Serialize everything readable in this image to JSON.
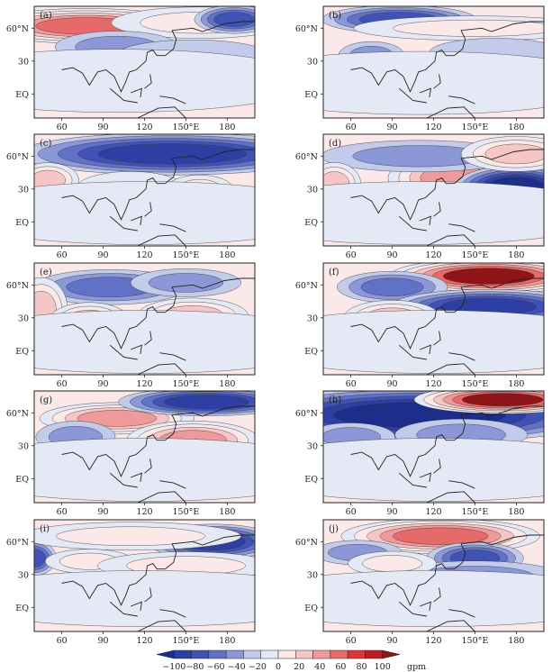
{
  "panels": [
    {
      "label": "(a)",
      "blobs": [
        {
          "cx": 78,
          "cy": 62,
          "rx": 48,
          "ry": 10,
          "a": 90
        },
        {
          "cx": 160,
          "cy": 65,
          "rx": 40,
          "ry": 9,
          "a": 40
        },
        {
          "cx": 185,
          "cy": 68,
          "rx": 18,
          "ry": 8,
          "a": -70
        },
        {
          "cx": 100,
          "cy": 43,
          "rx": 28,
          "ry": 9,
          "a": -35
        },
        {
          "cx": 155,
          "cy": 35,
          "rx": 35,
          "ry": 9,
          "a": -15
        },
        {
          "cx": 100,
          "cy": 12,
          "rx": 90,
          "ry": 18,
          "a": 5
        }
      ]
    },
    {
      "label": "(b)",
      "blobs": [
        {
          "cx": 95,
          "cy": 68,
          "rx": 35,
          "ry": 8,
          "a": -70
        },
        {
          "cx": 150,
          "cy": 60,
          "rx": 55,
          "ry": 7,
          "a": 25
        },
        {
          "cx": 75,
          "cy": 35,
          "rx": 15,
          "ry": 8,
          "a": -35
        },
        {
          "cx": 165,
          "cy": 38,
          "rx": 30,
          "ry": 8,
          "a": -20
        },
        {
          "cx": 110,
          "cy": 10,
          "rx": 90,
          "ry": 18,
          "a": 5
        }
      ]
    },
    {
      "label": "(c)",
      "blobs": [
        {
          "cx": 140,
          "cy": 62,
          "rx": 70,
          "ry": 12,
          "a": -100
        },
        {
          "cx": 50,
          "cy": 38,
          "rx": 14,
          "ry": 10,
          "a": 50
        },
        {
          "cx": 110,
          "cy": 30,
          "rx": 25,
          "ry": 10,
          "a": 20
        },
        {
          "cx": 160,
          "cy": 30,
          "rx": 15,
          "ry": 8,
          "a": 35
        },
        {
          "cx": 120,
          "cy": 8,
          "rx": 90,
          "ry": 18,
          "a": 10
        }
      ]
    },
    {
      "label": "(d)",
      "blobs": [
        {
          "cx": 135,
          "cy": 40,
          "rx": 30,
          "ry": 14,
          "a": 75
        },
        {
          "cx": 180,
          "cy": 32,
          "rx": 28,
          "ry": 12,
          "a": -110
        },
        {
          "cx": 110,
          "cy": 60,
          "rx": 45,
          "ry": 9,
          "a": -40
        },
        {
          "cx": 180,
          "cy": 62,
          "rx": 25,
          "ry": 10,
          "a": 60
        },
        {
          "cx": 48,
          "cy": 35,
          "rx": 12,
          "ry": 12,
          "a": 55
        },
        {
          "cx": 170,
          "cy": 20,
          "rx": 15,
          "ry": 7,
          "a": 30
        },
        {
          "cx": 110,
          "cy": 8,
          "rx": 90,
          "ry": 18,
          "a": 10
        }
      ]
    },
    {
      "label": "(e)",
      "blobs": [
        {
          "cx": 95,
          "cy": 58,
          "rx": 35,
          "ry": 10,
          "a": -60
        },
        {
          "cx": 150,
          "cy": 62,
          "rx": 25,
          "ry": 8,
          "a": -40
        },
        {
          "cx": 45,
          "cy": 38,
          "rx": 12,
          "ry": 18,
          "a": 60
        },
        {
          "cx": 80,
          "cy": 28,
          "rx": 18,
          "ry": 10,
          "a": 60
        },
        {
          "cx": 155,
          "cy": 32,
          "rx": 25,
          "ry": 10,
          "a": 55
        },
        {
          "cx": 120,
          "cy": 8,
          "rx": 90,
          "ry": 18,
          "a": 15
        }
      ]
    },
    {
      "label": "(f)",
      "blobs": [
        {
          "cx": 160,
          "cy": 68,
          "rx": 45,
          "ry": 10,
          "a": 110
        },
        {
          "cx": 90,
          "cy": 58,
          "rx": 25,
          "ry": 9,
          "a": -60
        },
        {
          "cx": 160,
          "cy": 40,
          "rx": 45,
          "ry": 10,
          "a": -85
        },
        {
          "cx": 90,
          "cy": 30,
          "rx": 22,
          "ry": 10,
          "a": 60
        },
        {
          "cx": 120,
          "cy": 8,
          "rx": 90,
          "ry": 18,
          "a": 15
        }
      ]
    },
    {
      "label": "(g)",
      "blobs": [
        {
          "cx": 100,
          "cy": 55,
          "rx": 35,
          "ry": 9,
          "a": 65
        },
        {
          "cx": 165,
          "cy": 70,
          "rx": 40,
          "ry": 8,
          "a": -90
        },
        {
          "cx": 155,
          "cy": 35,
          "rx": 30,
          "ry": 11,
          "a": 70
        },
        {
          "cx": 70,
          "cy": 38,
          "rx": 18,
          "ry": 9,
          "a": -30
        },
        {
          "cx": 120,
          "cy": 8,
          "rx": 90,
          "ry": 18,
          "a": 15
        }
      ]
    },
    {
      "label": "(h)",
      "blobs": [
        {
          "cx": 110,
          "cy": 58,
          "rx": 85,
          "ry": 16,
          "a": -105
        },
        {
          "cx": 170,
          "cy": 72,
          "rx": 40,
          "ry": 8,
          "a": 110
        },
        {
          "cx": 60,
          "cy": 38,
          "rx": 20,
          "ry": 8,
          "a": -30
        },
        {
          "cx": 140,
          "cy": 40,
          "rx": 30,
          "ry": 9,
          "a": -30
        },
        {
          "cx": 120,
          "cy": 8,
          "rx": 90,
          "ry": 18,
          "a": 10
        }
      ]
    },
    {
      "label": "(i)",
      "blobs": [
        {
          "cx": 170,
          "cy": 60,
          "rx": 30,
          "ry": 10,
          "a": -100
        },
        {
          "cx": 40,
          "cy": 45,
          "rx": 10,
          "ry": 10,
          "a": -70
        },
        {
          "cx": 110,
          "cy": 65,
          "rx": 50,
          "ry": 8,
          "a": 25
        },
        {
          "cx": 80,
          "cy": 42,
          "rx": 20,
          "ry": 7,
          "a": 30
        },
        {
          "cx": 150,
          "cy": 38,
          "rx": 40,
          "ry": 8,
          "a": 30
        },
        {
          "cx": 120,
          "cy": 8,
          "rx": 90,
          "ry": 16,
          "a": 10
        }
      ]
    },
    {
      "label": "(j)",
      "blobs": [
        {
          "cx": 125,
          "cy": 65,
          "rx": 45,
          "ry": 10,
          "a": 85
        },
        {
          "cx": 65,
          "cy": 50,
          "rx": 20,
          "ry": 7,
          "a": -40
        },
        {
          "cx": 150,
          "cy": 45,
          "rx": 22,
          "ry": 9,
          "a": -70
        },
        {
          "cx": 150,
          "cy": 28,
          "rx": 40,
          "ry": 9,
          "a": -35
        },
        {
          "cx": 90,
          "cy": 40,
          "rx": 20,
          "ry": 7,
          "a": 25
        },
        {
          "cx": 120,
          "cy": 8,
          "rx": 90,
          "ry": 16,
          "a": 10
        }
      ]
    }
  ],
  "axes": {
    "lon_ticks": [
      "60",
      "90",
      "120",
      "150°E",
      "180"
    ],
    "lon_values": [
      60,
      90,
      120,
      150,
      180
    ],
    "lat_ticks": [
      "60°N",
      "30",
      "EQ"
    ],
    "lat_values": [
      60,
      30,
      0
    ],
    "lon_range": [
      40,
      200
    ],
    "lat_range": [
      -22,
      80
    ]
  },
  "colorbar": {
    "levels": [
      -100,
      -80,
      -60,
      -40,
      -20,
      0,
      20,
      40,
      60,
      80,
      100
    ],
    "tick_labels": [
      "−100",
      "−80",
      "−60",
      "−40",
      "−20",
      "0",
      "20",
      "40",
      "60",
      "80",
      "100"
    ],
    "unit": "gpm",
    "colors": [
      "#1c2d8a",
      "#2e3fa3",
      "#4152b7",
      "#6171c6",
      "#8b97d6",
      "#c3cbeb",
      "#e5e9f6",
      "#fbe8e8",
      "#f6c6c6",
      "#ef9a9a",
      "#e66a6a",
      "#d9383a",
      "#b81f24",
      "#8f1417"
    ]
  },
  "chart_data": {
    "type": "heatmap",
    "panels": [
      "(a)",
      "(b)",
      "(c)",
      "(d)",
      "(e)",
      "(f)",
      "(g)",
      "(h)",
      "(i)",
      "(j)"
    ],
    "x": [
      60,
      90,
      120,
      150,
      180
    ],
    "y": [
      60,
      30,
      0
    ],
    "xlabel": "",
    "ylabel": "",
    "levels": [
      -100,
      -80,
      -60,
      -40,
      -20,
      0,
      20,
      40,
      60,
      80,
      100
    ],
    "unit": "gpm"
  }
}
